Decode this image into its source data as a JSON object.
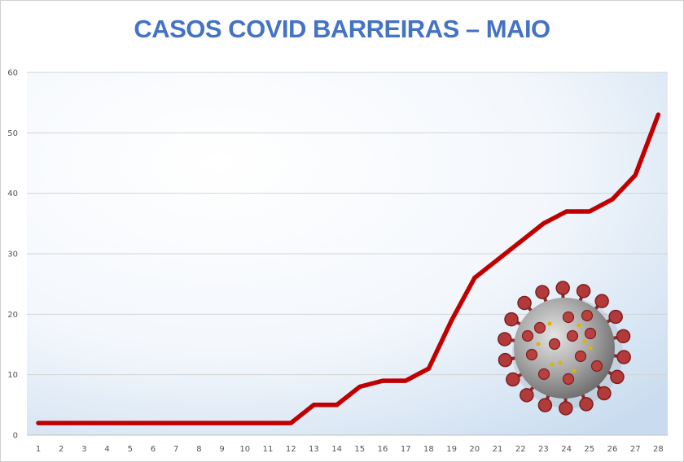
{
  "chart_data": {
    "type": "line",
    "title": "CASOS COVID BARREIRAS – MAIO",
    "xlabel": "",
    "ylabel": "",
    "x": [
      1,
      2,
      3,
      4,
      5,
      6,
      7,
      8,
      9,
      10,
      11,
      12,
      13,
      14,
      15,
      16,
      17,
      18,
      19,
      20,
      21,
      22,
      23,
      24,
      25,
      26,
      27,
      28
    ],
    "x_ticks": [
      "1",
      "2",
      "3",
      "4",
      "5",
      "6",
      "7",
      "8",
      "9",
      "10",
      "11",
      "12",
      "13",
      "14",
      "15",
      "16",
      "17",
      "18",
      "19",
      "20",
      "21",
      "22",
      "23",
      "24",
      "25",
      "26",
      "27",
      "28"
    ],
    "series": [
      {
        "values": [
          2,
          2,
          2,
          2,
          2,
          2,
          2,
          2,
          2,
          2,
          2,
          2,
          5,
          5,
          8,
          9,
          9,
          11,
          19,
          26,
          29,
          32,
          35,
          37,
          37,
          39,
          43,
          53
        ],
        "color": "#c00000"
      }
    ],
    "ylim": [
      0,
      60
    ],
    "y_ticks": [
      "0",
      "10",
      "20",
      "30",
      "40",
      "50",
      "60"
    ],
    "grid": true,
    "legend": "none",
    "decoration": "coronavirus-illustration"
  }
}
